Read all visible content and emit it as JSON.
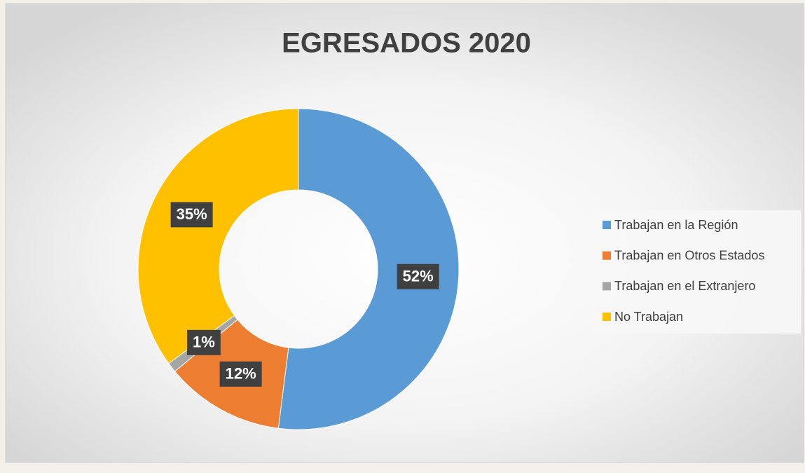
{
  "chart_data": {
    "type": "donut",
    "title": "EGRESADOS 2020",
    "categories": [
      "Trabajan en la Región",
      "Trabajan en Otros Estados",
      "Trabajan en el Extranjero",
      "No Trabajan"
    ],
    "values": [
      52,
      12,
      1,
      35
    ],
    "value_labels": [
      "52%",
      "12%",
      "1%",
      "35%"
    ],
    "colors": [
      "#5b9bd5",
      "#ed7d31",
      "#a5a5a5",
      "#ffc000"
    ],
    "legend": "right"
  }
}
